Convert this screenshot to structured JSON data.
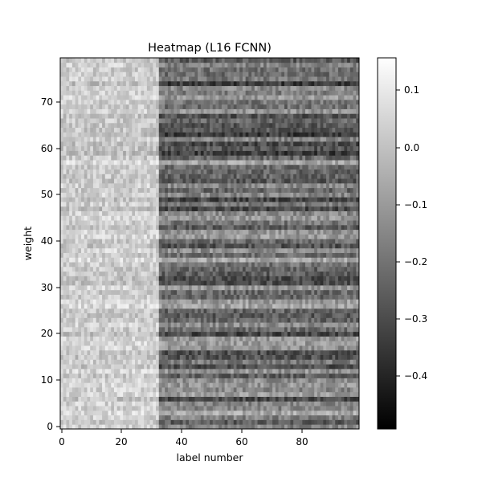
{
  "chart_data": {
    "type": "heatmap",
    "title": "Heatmap (L16 FCNN)",
    "xlabel": "label number",
    "ylabel": "weight",
    "xlim": [
      0,
      99
    ],
    "ylim": [
      0,
      79
    ],
    "xticks": [
      "0",
      "20",
      "40",
      "60",
      "80"
    ],
    "yticks": [
      "0",
      "10",
      "20",
      "30",
      "40",
      "50",
      "60",
      "70"
    ],
    "colormap": "gray",
    "colorbar": {
      "min": -0.49,
      "max": 0.16,
      "ticks": [
        "0.1",
        "0.0",
        "−0.1",
        "−0.2",
        "−0.3",
        "−0.4"
      ]
    },
    "n_cols": 100,
    "n_rows": 80
  }
}
